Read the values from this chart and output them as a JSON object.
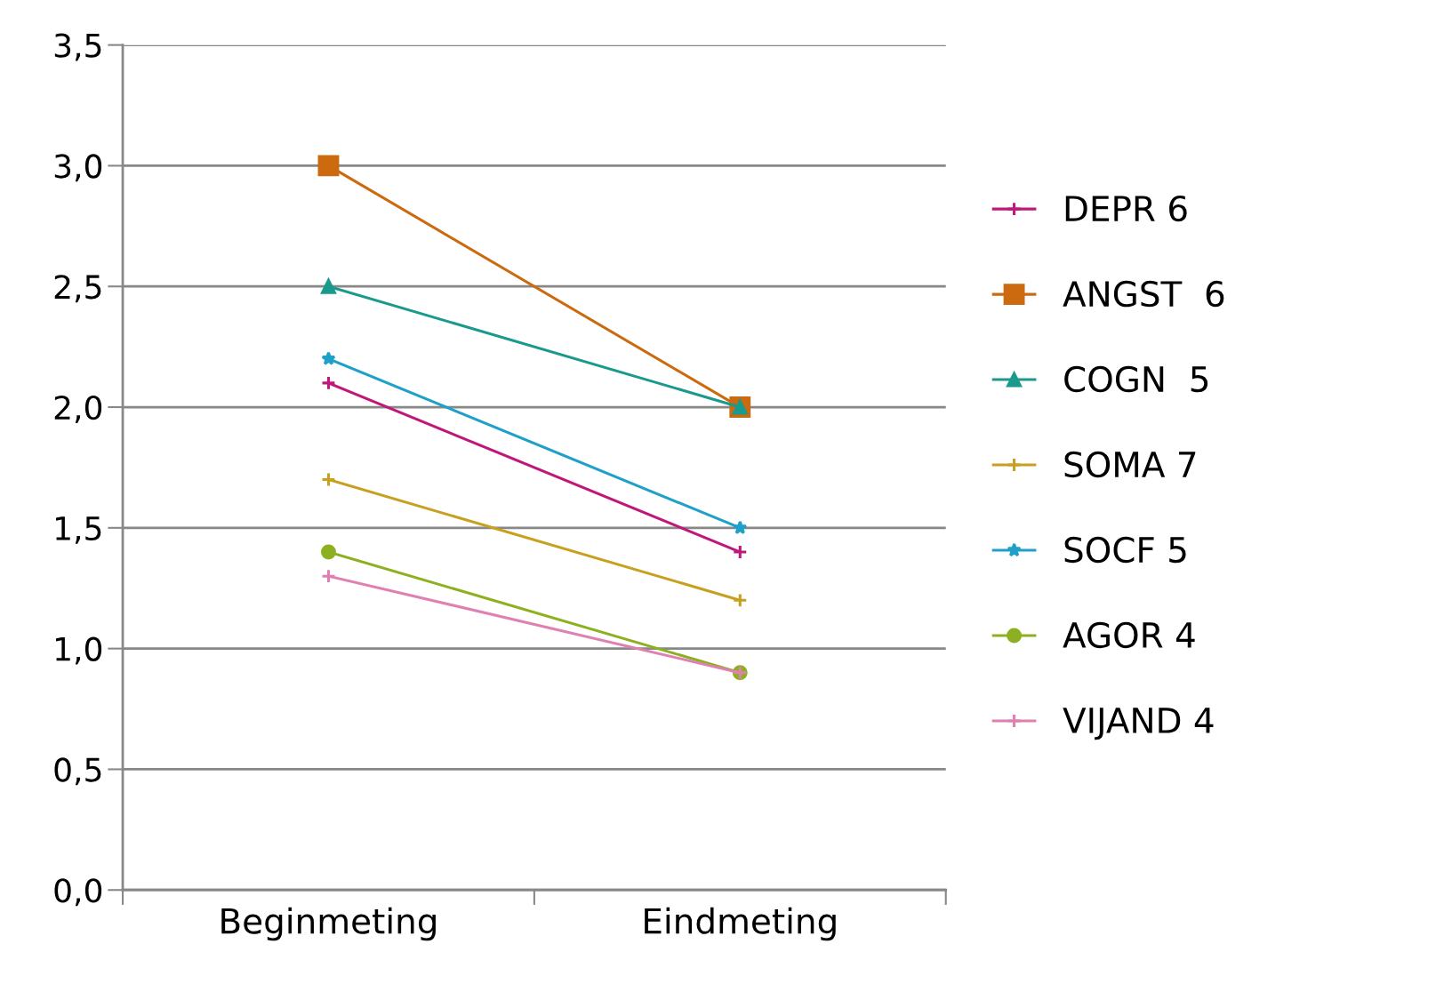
{
  "chart_data": {
    "type": "line",
    "categories": [
      "Beginmeting",
      "Eindmeting"
    ],
    "ylim": [
      0,
      3.5
    ],
    "yticks": [
      {
        "value": 0,
        "label": "0,0"
      },
      {
        "value": 0.5,
        "label": "0,5"
      },
      {
        "value": 1,
        "label": "1,0"
      },
      {
        "value": 1.5,
        "label": "1,5"
      },
      {
        "value": 2,
        "label": "2,0"
      },
      {
        "value": 2.5,
        "label": "2,5"
      },
      {
        "value": 3,
        "label": "3,0"
      },
      {
        "value": 3.5,
        "label": "3,5"
      }
    ],
    "grid": "y",
    "legend": "right",
    "line_style": "solid",
    "series": [
      {
        "name": "DEPR 6",
        "color": "#c0187a",
        "marker": "cross",
        "values": [
          2.1,
          1.4
        ]
      },
      {
        "name": "ANGST  6",
        "color": "#cc6a10",
        "marker": "square",
        "values": [
          3.0,
          2.0
        ]
      },
      {
        "name": "COGN  5",
        "color": "#1a9a8c",
        "marker": "triangle",
        "values": [
          2.5,
          2.0
        ]
      },
      {
        "name": "SOMA 7",
        "color": "#c8a020",
        "marker": "cross",
        "values": [
          1.7,
          1.2
        ]
      },
      {
        "name": "SOCF 5",
        "color": "#1fa0c8",
        "marker": "star",
        "values": [
          2.2,
          1.5
        ]
      },
      {
        "name": "AGOR 4",
        "color": "#8db020",
        "marker": "circle",
        "values": [
          1.4,
          0.9
        ]
      },
      {
        "name": "VIJAND 4",
        "color": "#e080b0",
        "marker": "cross",
        "values": [
          1.3,
          0.9
        ]
      }
    ]
  }
}
